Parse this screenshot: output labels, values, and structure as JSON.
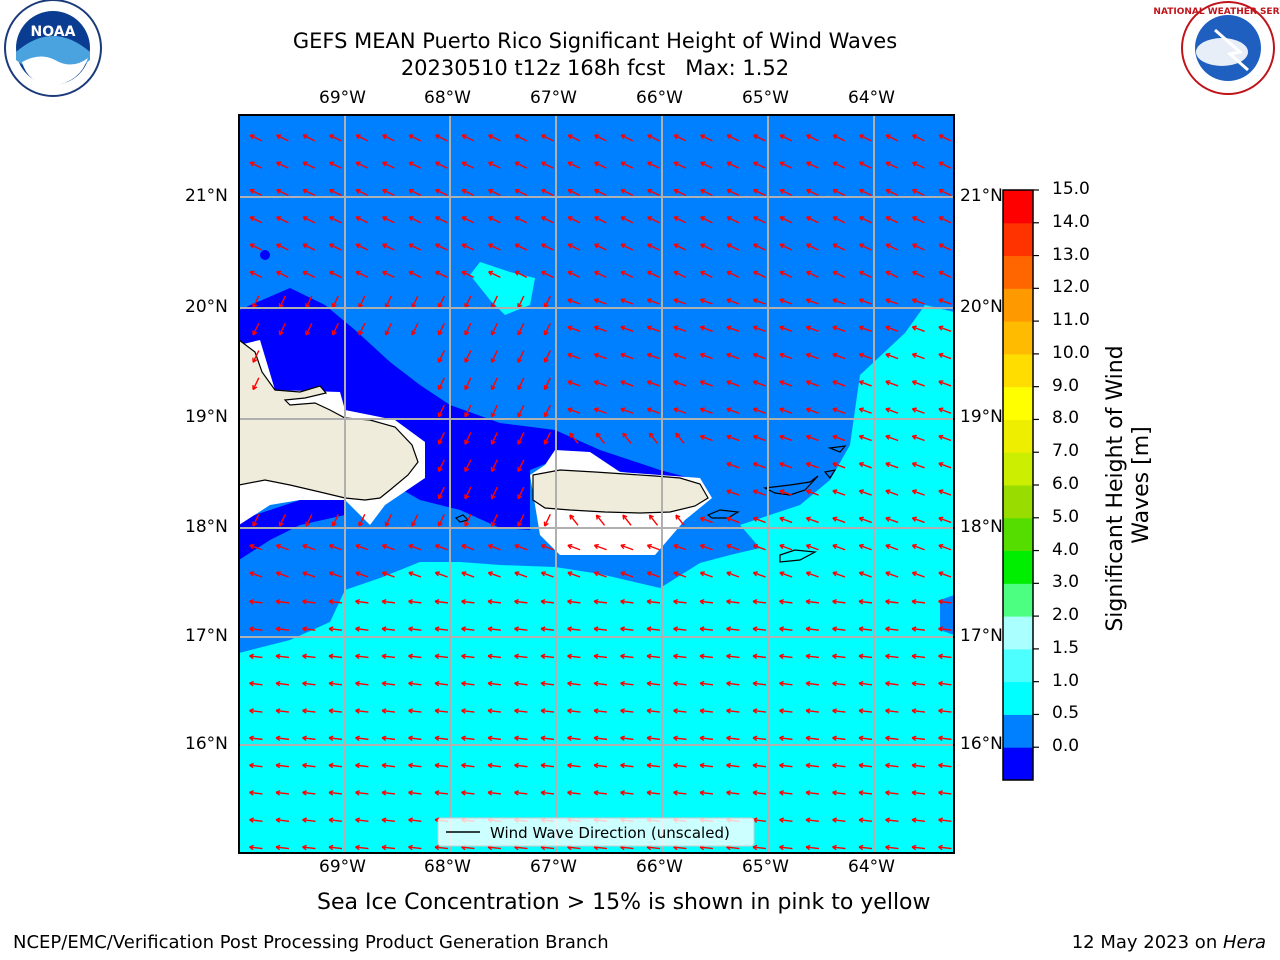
{
  "title": {
    "line1": "GEFS MEAN Puerto Rico Significant Height of Wind Waves",
    "line2": "20230510 t12z 168h fcst   Max: 1.52"
  },
  "logos": {
    "left": {
      "name": "NOAA",
      "ring_text": "NATIONAL OCEANIC AND ATMOSPHERIC ADMINISTRATION · U.S. DEPARTMENT OF COMMERCE"
    },
    "right": {
      "name": "NATIONAL WEATHER SERVICE"
    }
  },
  "map": {
    "lon_labels": [
      "69°W",
      "68°W",
      "67°W",
      "66°W",
      "65°W",
      "64°W"
    ],
    "lat_labels": [
      "21°N",
      "20°N",
      "19°N",
      "18°N",
      "17°N",
      "16°N"
    ],
    "legend_label": "Wind Wave Direction (unscaled)",
    "arrow_color": "#ff0000",
    "land_color": "#efecdc",
    "grid_color": "#b0b0b0"
  },
  "colorbar": {
    "label": "Significant Height of Wind Waves [m]",
    "ticks": [
      "15.0",
      "14.0",
      "13.0",
      "12.0",
      "11.0",
      "10.0",
      "9.0",
      "8.0",
      "7.0",
      "6.0",
      "5.0",
      "4.0",
      "3.0",
      "2.0",
      "1.5",
      "1.0",
      "0.5",
      "0.0"
    ],
    "colors": [
      "#0000ff",
      "#0080ff",
      "#00ffff",
      "#4dffff",
      "#aaffff",
      "#4dff80",
      "#00ee00",
      "#55dd00",
      "#99dd00",
      "#ccee00",
      "#eeee00",
      "#ffff00",
      "#ffdd00",
      "#ffbb00",
      "#ff9900",
      "#ff6600",
      "#ff3300",
      "#ff0000"
    ]
  },
  "note": "Sea Ice Concentration > 15% is shown in pink to yellow",
  "footer": {
    "left": "NCEP/EMC/Verification Post Processing Product Generation Branch",
    "right_prefix": "12 May 2023 on ",
    "right_host": "Hera"
  }
}
